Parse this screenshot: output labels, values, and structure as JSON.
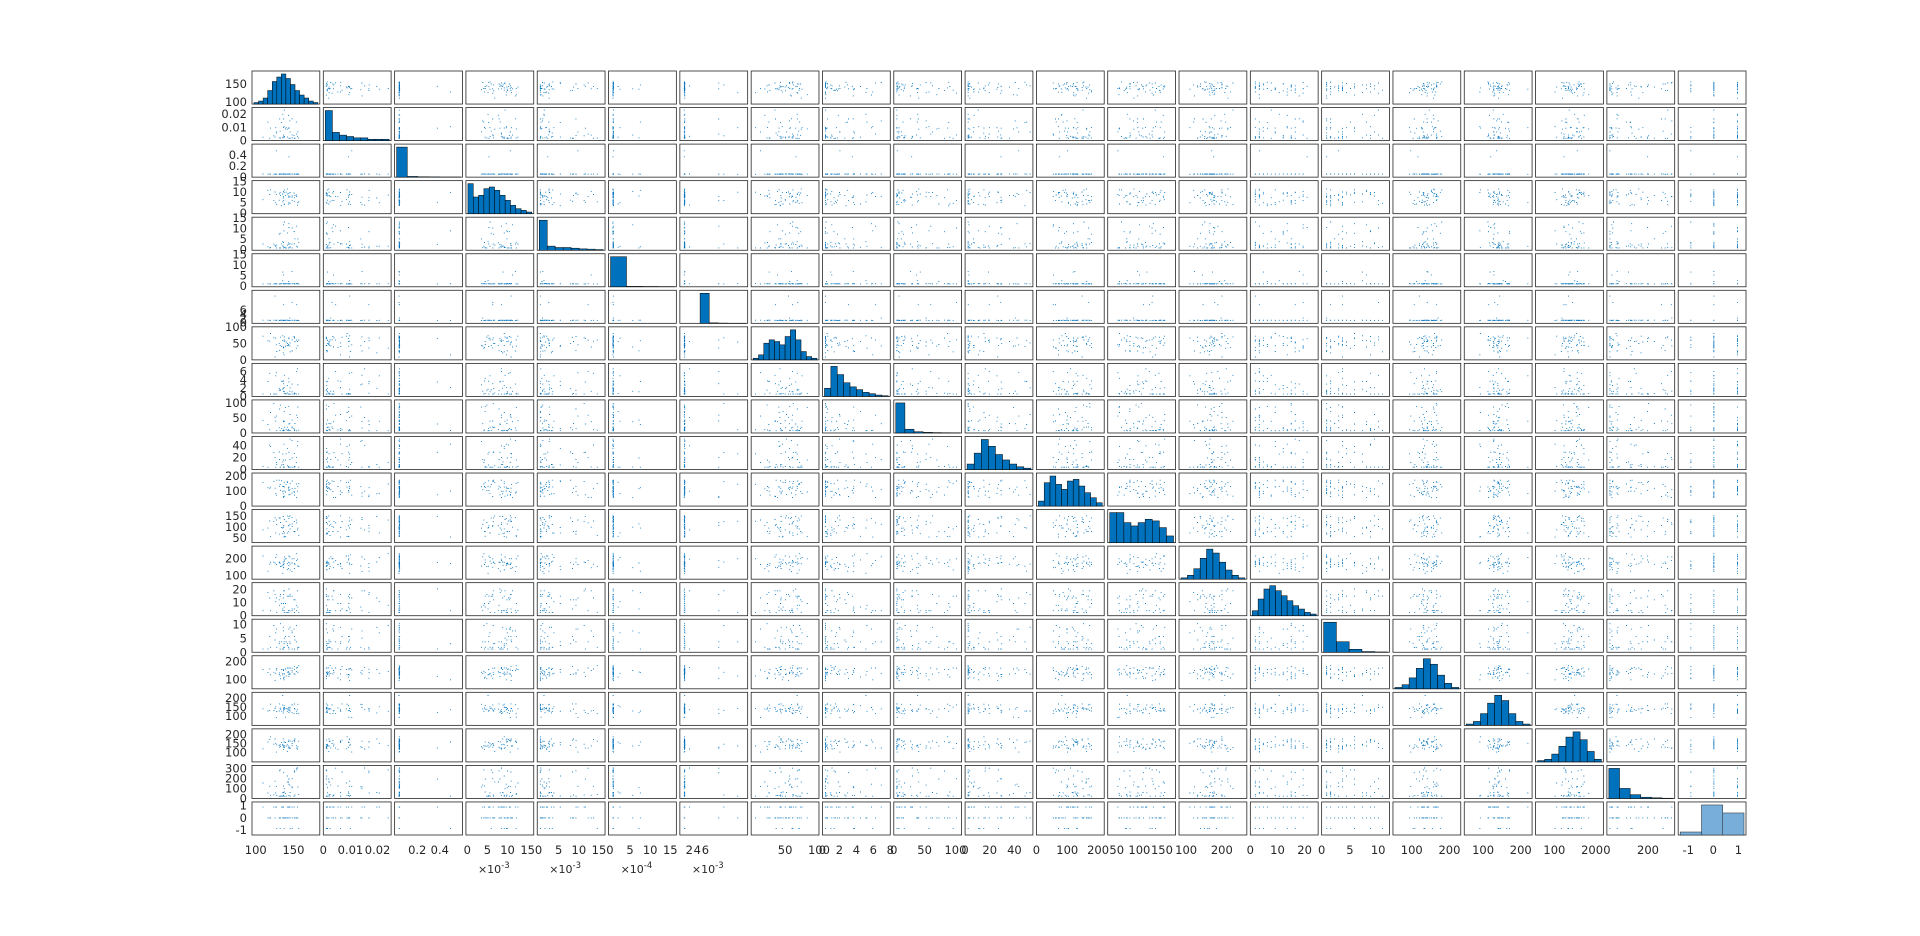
{
  "figure": {
    "background": "#ffffff",
    "point_color": "#0072BD",
    "bar_color": "#0072BD",
    "last_bar_color": "#77AEDA",
    "frame_color": "#262626"
  },
  "chart_data": {
    "type": "scatter",
    "subtype": "scatter-matrix (plotmatrix)",
    "grid": false,
    "n_variables": 21,
    "diagonal": "histogram",
    "variables": [
      {
        "lim": [
          95,
          185
        ],
        "yticks": [
          100,
          150
        ],
        "xticks": [
          100,
          150
        ],
        "exp": "",
        "dist": "normal",
        "hist": [
          1,
          2,
          4,
          9,
          15,
          18,
          20,
          17,
          13,
          9,
          6,
          4,
          2,
          1
        ]
      },
      {
        "lim": [
          0,
          0.025
        ],
        "yticks": [
          0,
          0.01,
          0.02
        ],
        "xticks": [
          0,
          0.01,
          0.02
        ],
        "exp": "",
        "dist": "skew",
        "hist": [
          22,
          6,
          4,
          3,
          2,
          2,
          1,
          1,
          1
        ]
      },
      {
        "lim": [
          0,
          0.6
        ],
        "yticks": [
          0,
          0.2,
          0.4
        ],
        "xticks": [
          0.2,
          0.4
        ],
        "exp": "",
        "dist": "spike",
        "hist": [
          25,
          0.6,
          0.3,
          0.2,
          0.1,
          0.1
        ]
      },
      {
        "lim": [
          0,
          0.018
        ],
        "yticks": [
          0,
          5,
          10,
          15
        ],
        "xticks": [
          0,
          5,
          10,
          15
        ],
        "exp": "-3",
        "dist": "bimodal",
        "hist": [
          18,
          10,
          11,
          15,
          16,
          14,
          11,
          8,
          5,
          3,
          2,
          1
        ]
      },
      {
        "lim": [
          0,
          0.018
        ],
        "yticks": [
          0,
          5,
          10,
          15
        ],
        "xticks": [
          0,
          5,
          10,
          15
        ],
        "exp": "-3",
        "dist": "skew",
        "hist": [
          22,
          3,
          2,
          2,
          1.5,
          1,
          0.8,
          0.5
        ]
      },
      {
        "lim": [
          0,
          0.0018
        ],
        "yticks": [
          0,
          5,
          10,
          15
        ],
        "xticks": [
          0,
          5,
          10,
          15
        ],
        "exp": "-4",
        "dist": "spike",
        "hist": [
          25,
          0.3,
          0.2,
          0.1
        ]
      },
      {
        "lim": [
          0,
          0.0065
        ],
        "yticks": [
          0,
          2,
          4,
          6
        ],
        "xticks": [
          2,
          4,
          6
        ],
        "exp": "-3",
        "dist": "spike",
        "hist": [
          0,
          0,
          25,
          0.4,
          0.2,
          0.1,
          0.1
        ]
      },
      {
        "lim": [
          0,
          100
        ],
        "yticks": [
          0,
          50,
          100
        ],
        "xticks": [
          50,
          100
        ],
        "exp": "",
        "dist": "bimodal",
        "hist": [
          1,
          3,
          10,
          12,
          11,
          9,
          14,
          18,
          12,
          5,
          2,
          1
        ]
      },
      {
        "lim": [
          0,
          8
        ],
        "yticks": [
          0,
          2,
          4,
          6
        ],
        "xticks": [
          0,
          2,
          4,
          6,
          8
        ],
        "exp": "",
        "dist": "skew",
        "hist": [
          6,
          22,
          16,
          10,
          7,
          5,
          3,
          2,
          1,
          0.5
        ]
      },
      {
        "lim": [
          0,
          110
        ],
        "yticks": [
          0,
          50,
          100
        ],
        "xticks": [
          0,
          50,
          100
        ],
        "exp": "",
        "dist": "skew",
        "hist": [
          24,
          3,
          1,
          0.5,
          0.3,
          0.2,
          0.1
        ]
      },
      {
        "lim": [
          0,
          55
        ],
        "yticks": [
          0,
          20,
          40
        ],
        "xticks": [
          0,
          20,
          40
        ],
        "exp": "",
        "dist": "skew",
        "hist": [
          4,
          12,
          22,
          17,
          11,
          7,
          4,
          2,
          1
        ]
      },
      {
        "lim": [
          0,
          220
        ],
        "yticks": [
          0,
          100,
          200
        ],
        "xticks": [
          0,
          100,
          200
        ],
        "exp": "",
        "dist": "bimodal",
        "hist": [
          3,
          14,
          18,
          13,
          10,
          15,
          16,
          12,
          8,
          5,
          2
        ]
      },
      {
        "lim": [
          30,
          180
        ],
        "yticks": [
          50,
          100,
          150
        ],
        "xticks": [
          50,
          100,
          150
        ],
        "exp": "",
        "dist": "wide",
        "hist": [
          18,
          18,
          12,
          10,
          12,
          14,
          13,
          9,
          4
        ]
      },
      {
        "lim": [
          80,
          270
        ],
        "yticks": [
          100,
          200
        ],
        "xticks": [
          100,
          200
        ],
        "exp": "",
        "dist": "normal",
        "hist": [
          1,
          3,
          8,
          16,
          23,
          20,
          13,
          7,
          3,
          1
        ]
      },
      {
        "lim": [
          0,
          25
        ],
        "yticks": [
          0,
          10,
          20
        ],
        "xticks": [
          0,
          10,
          20
        ],
        "exp": "",
        "dist": "discrete",
        "hist": [
          3,
          10,
          16,
          18,
          15,
          12,
          9,
          6,
          4,
          2,
          1
        ]
      },
      {
        "lim": [
          0,
          12
        ],
        "yticks": [
          0,
          5,
          10
        ],
        "xticks": [
          0,
          5,
          10
        ],
        "exp": "",
        "dist": "discrete",
        "hist": [
          20,
          7,
          2,
          0.5,
          0.2
        ]
      },
      {
        "lim": [
          50,
          230
        ],
        "yticks": [
          100,
          200
        ],
        "xticks": [
          100,
          200
        ],
        "exp": "",
        "dist": "normal",
        "hist": [
          1,
          3,
          8,
          15,
          22,
          18,
          10,
          4,
          1
        ]
      },
      {
        "lim": [
          50,
          230
        ],
        "yticks": [
          100,
          150,
          200
        ],
        "xticks": [
          100,
          200
        ],
        "exp": "",
        "dist": "normal",
        "hist": [
          1,
          3,
          9,
          17,
          23,
          19,
          9,
          3,
          1
        ]
      },
      {
        "lim": [
          50,
          230
        ],
        "yticks": [
          100,
          150,
          200
        ],
        "xticks": [
          100,
          200
        ],
        "exp": "",
        "dist": "normal",
        "hist": [
          1,
          2,
          6,
          12,
          19,
          23,
          17,
          8,
          2
        ]
      },
      {
        "lim": [
          0,
          330
        ],
        "yticks": [
          0,
          100,
          200,
          300
        ],
        "xticks": [
          0,
          200
        ],
        "exp": "",
        "dist": "skew",
        "hist": [
          24,
          8,
          3,
          1,
          0.5,
          0.2
        ]
      },
      {
        "lim": [
          -1.4,
          1.3
        ],
        "yticks": [
          -1,
          0,
          1
        ],
        "xticks": [
          -1,
          0,
          1
        ],
        "exp": "",
        "dist": "ternary",
        "hist": [
          3,
          30,
          22
        ]
      }
    ],
    "exponent_labels": [
      "×10",
      "×10",
      "×10",
      "×10"
    ]
  }
}
